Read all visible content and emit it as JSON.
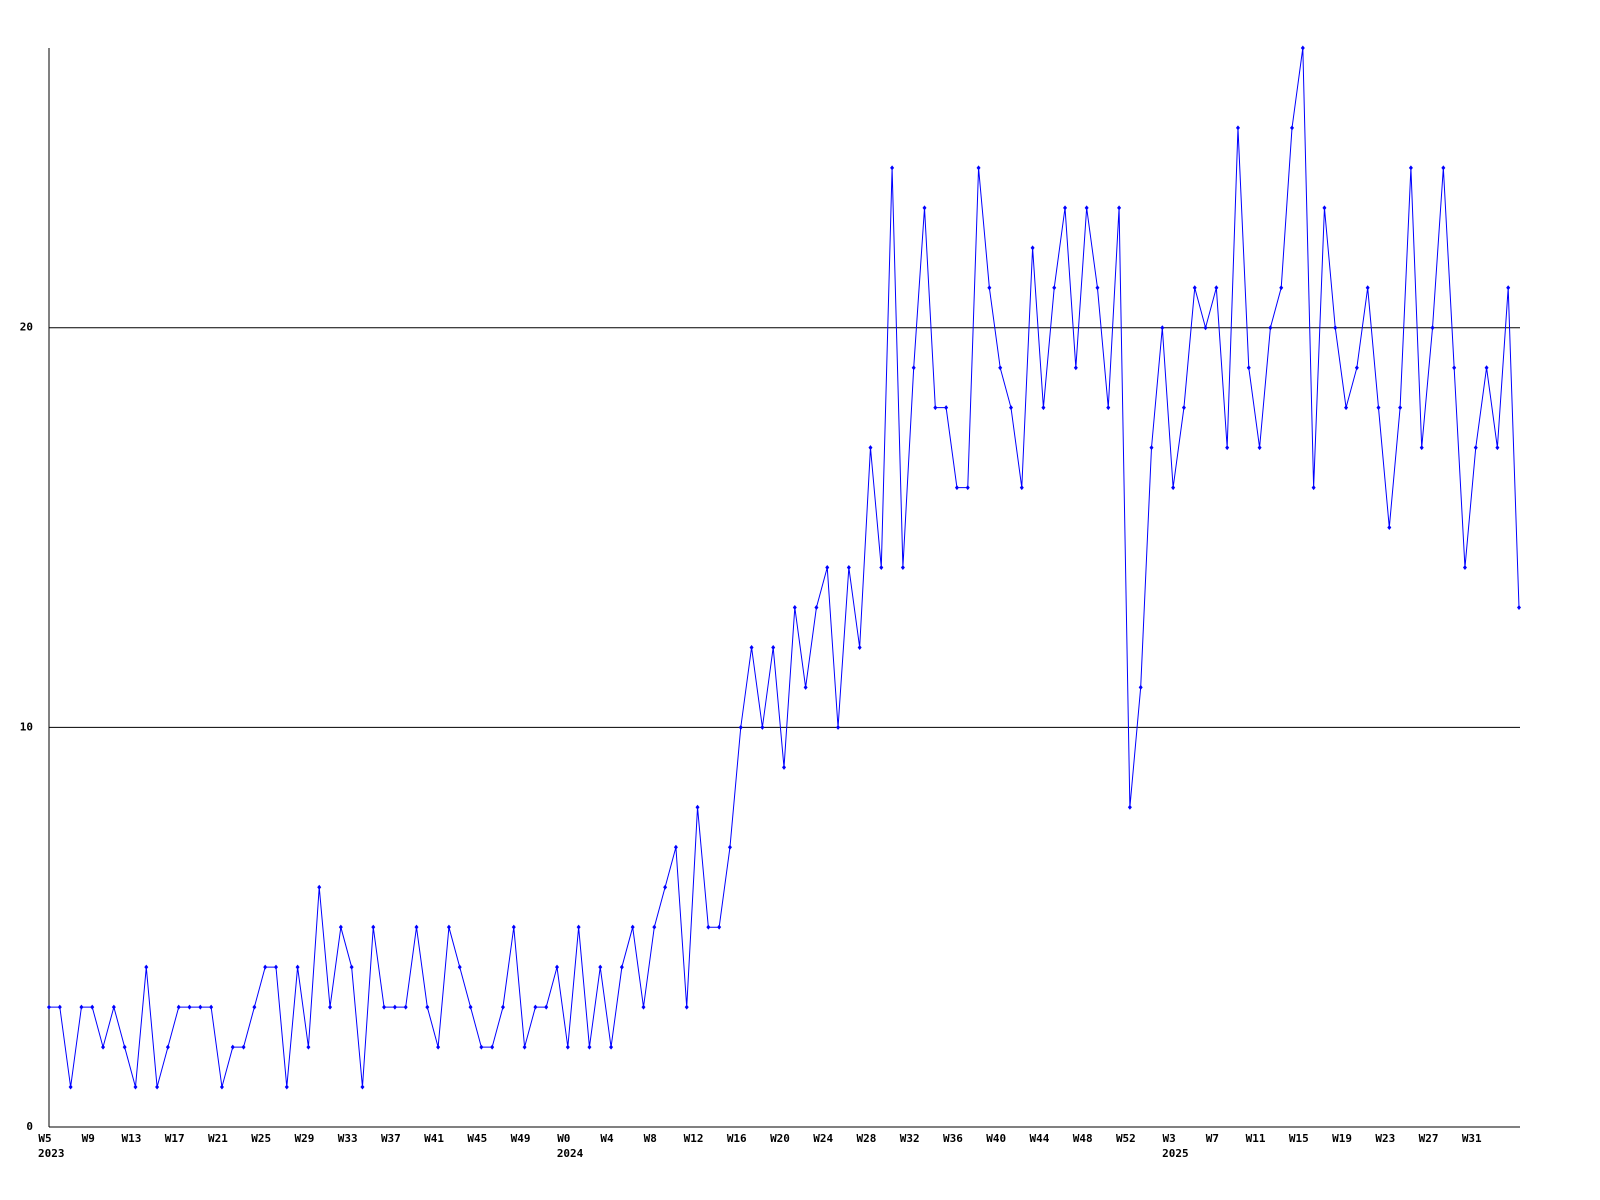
{
  "chart_data": {
    "type": "line",
    "categories": [
      "W5",
      null,
      null,
      null,
      "W9",
      null,
      null,
      null,
      "W13",
      null,
      null,
      null,
      "W17",
      null,
      null,
      null,
      "W21",
      null,
      null,
      null,
      "W25",
      null,
      null,
      null,
      "W29",
      null,
      null,
      null,
      "W33",
      null,
      null,
      null,
      "W37",
      null,
      null,
      null,
      "W41",
      null,
      null,
      null,
      "W45",
      null,
      null,
      null,
      "W49",
      null,
      null,
      null,
      "W0",
      null,
      null,
      null,
      "W4",
      null,
      null,
      null,
      "W8",
      null,
      null,
      null,
      "W12",
      null,
      null,
      null,
      "W16",
      null,
      null,
      null,
      "W20",
      null,
      null,
      null,
      "W24",
      null,
      null,
      null,
      "W28",
      null,
      null,
      null,
      "W32",
      null,
      null,
      null,
      "W36",
      null,
      null,
      null,
      "W40",
      null,
      null,
      null,
      "W44",
      null,
      null,
      null,
      "W48",
      null,
      null,
      null,
      "W52",
      null,
      null,
      null,
      "W3",
      null,
      null,
      null,
      "W7",
      null,
      null,
      null,
      "W11",
      null,
      null,
      null,
      "W15",
      null,
      null,
      null,
      "W19",
      null,
      null,
      null,
      "W23",
      null,
      null,
      null,
      "W27",
      null,
      null,
      null,
      "W31",
      null,
      null,
      null,
      null
    ],
    "category_years": [
      "2023",
      null,
      null,
      null,
      null,
      null,
      null,
      null,
      null,
      null,
      null,
      null,
      null,
      null,
      null,
      null,
      null,
      null,
      null,
      null,
      null,
      null,
      null,
      null,
      null,
      null,
      null,
      null,
      null,
      null,
      null,
      null,
      null,
      null,
      null,
      null,
      null,
      null,
      null,
      null,
      null,
      null,
      null,
      null,
      null,
      null,
      null,
      null,
      "2024",
      null,
      null,
      null,
      null,
      null,
      null,
      null,
      null,
      null,
      null,
      null,
      null,
      null,
      null,
      null,
      null,
      null,
      null,
      null,
      null,
      null,
      null,
      null,
      null,
      null,
      null,
      null,
      null,
      null,
      null,
      null,
      null,
      null,
      null,
      null,
      null,
      null,
      null,
      null,
      null,
      null,
      null,
      null,
      null,
      null,
      null,
      null,
      null,
      null,
      null,
      null,
      null,
      null,
      null,
      null,
      "2025",
      null,
      null,
      null,
      null,
      null,
      null,
      null,
      null,
      null,
      null,
      null,
      null,
      null,
      null,
      null,
      null,
      null,
      null,
      null,
      null,
      null,
      null,
      null,
      null,
      null,
      null,
      null,
      null,
      null,
      null,
      null
    ],
    "series": [
      {
        "color": "#0000ff",
        "values": [
          3,
          3,
          1,
          3,
          3,
          2,
          3,
          2,
          1,
          4,
          1,
          2,
          3,
          3,
          3,
          3,
          1,
          2,
          2,
          3,
          4,
          4,
          1,
          4,
          2,
          6,
          3,
          5,
          4,
          1,
          5,
          3,
          3,
          3,
          5,
          3,
          2,
          5,
          4,
          3,
          2,
          2,
          3,
          5,
          2,
          3,
          3,
          4,
          2,
          5,
          2,
          4,
          2,
          4,
          5,
          3,
          5,
          6,
          7,
          3,
          8,
          5,
          5,
          7,
          10,
          12,
          10,
          12,
          9,
          13,
          11,
          13,
          14,
          10,
          14,
          12,
          17,
          14,
          24,
          14,
          19,
          23,
          18,
          18,
          16,
          16,
          24,
          21,
          19,
          18,
          16,
          22,
          18,
          21,
          23,
          19,
          23,
          21,
          18,
          23,
          8,
          11,
          17,
          20,
          16,
          18,
          21,
          20,
          21,
          17,
          25,
          19,
          17,
          20,
          21,
          25,
          27,
          16,
          23,
          20,
          18,
          19,
          21,
          18,
          15,
          18,
          24,
          17,
          20,
          24,
          19,
          14,
          17,
          19,
          17,
          21,
          13
        ]
      }
    ],
    "ylim": [
      0,
      27
    ],
    "yticks": [
      0,
      10,
      20
    ],
    "grid": true
  }
}
